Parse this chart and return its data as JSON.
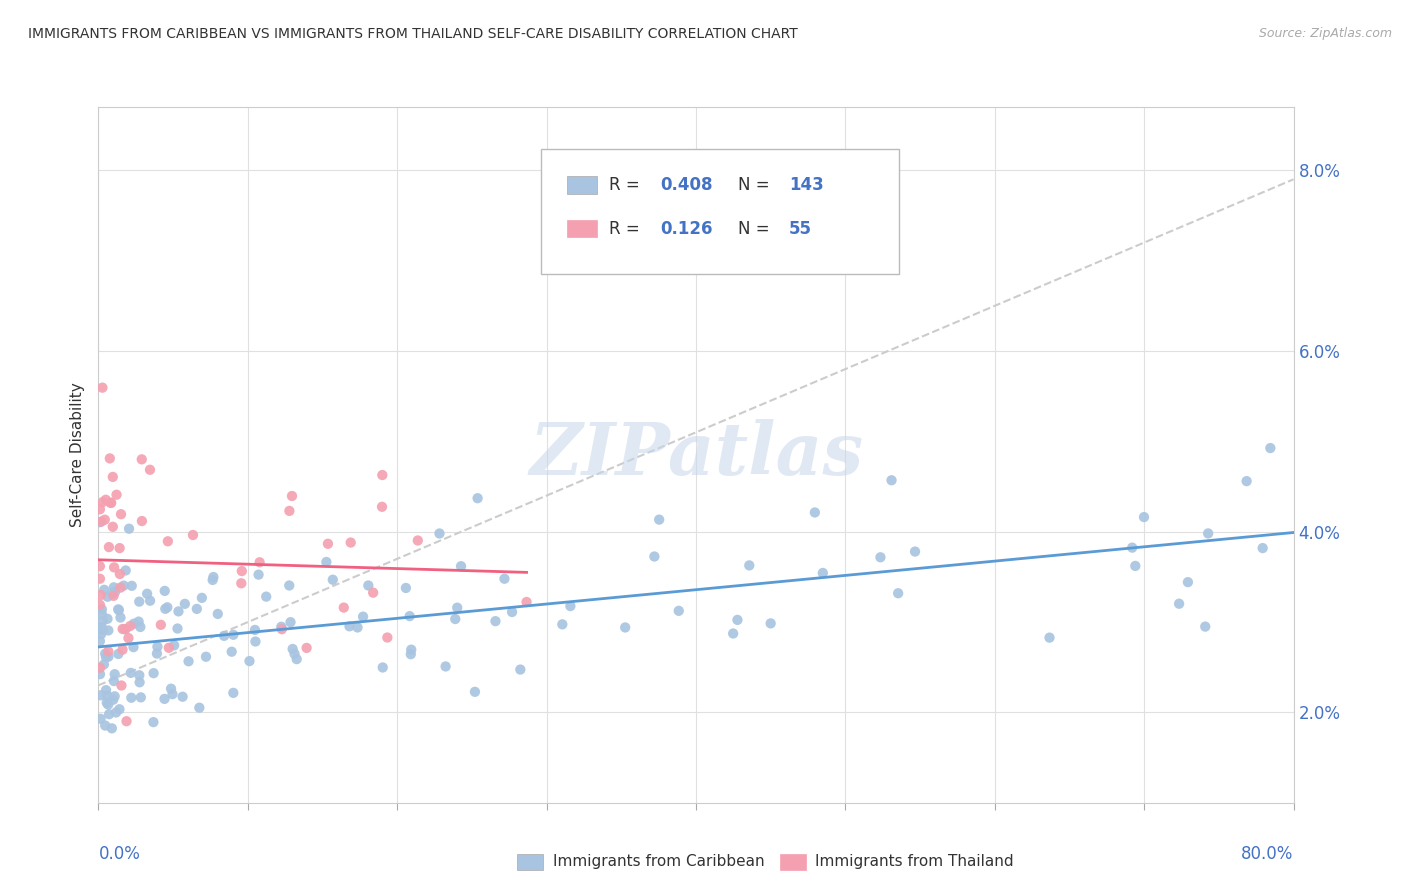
{
  "title": "IMMIGRANTS FROM CARIBBEAN VS IMMIGRANTS FROM THAILAND SELF-CARE DISABILITY CORRELATION CHART",
  "source": "Source: ZipAtlas.com",
  "ylabel": "Self-Care Disability",
  "watermark": "ZIPatlas",
  "series1_label": "Immigrants from Caribbean",
  "series2_label": "Immigrants from Thailand",
  "series1_R": "0.408",
  "series1_N": "143",
  "series2_R": "0.126",
  "series2_N": "55",
  "series1_color": "#a8c4e0",
  "series2_color": "#f4a0b0",
  "series1_line_color": "#5b9bd5",
  "series2_line_color": "#f06080",
  "background_color": "#ffffff",
  "grid_color": "#e0e0e0",
  "xlim": [
    0.0,
    80.0
  ],
  "ylim": [
    1.0,
    8.7
  ],
  "ytick_values": [
    2.0,
    4.0,
    6.0,
    8.0
  ],
  "ytick_labels": [
    "2.0%",
    "4.0%",
    "6.0%",
    "8.0%"
  ],
  "axis_color": "#4472c4",
  "text_color": "#333333",
  "source_color": "#aaaaaa"
}
